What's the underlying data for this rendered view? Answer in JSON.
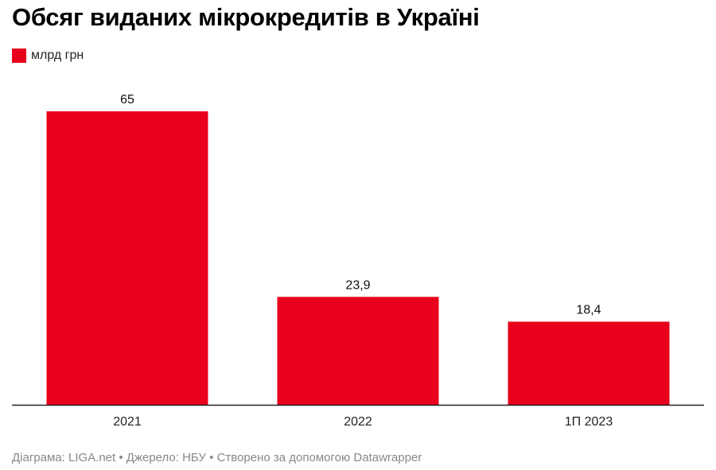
{
  "title": "Обсяг виданих мікрокредитів в Україні",
  "legend": {
    "label": "млрд грн"
  },
  "colors": {
    "bar": "#e8001c",
    "axis": "#222222"
  },
  "chart_data": {
    "type": "bar",
    "categories": [
      "2021",
      "2022",
      "1П 2023"
    ],
    "series": [
      {
        "name": "млрд грн",
        "values": [
          65,
          23.9,
          18.4
        ],
        "labels": [
          "65",
          "23,9",
          "18,4"
        ]
      }
    ],
    "ylim": [
      0,
      65
    ],
    "grid": false,
    "legend_position": "top-left"
  },
  "footer": {
    "chart_by": "Діаграма: LIGA.net",
    "sep1": " • ",
    "source": "Джерело: НБУ",
    "sep2": " • ",
    "created": "Створено за допомогою Datawrapper"
  }
}
